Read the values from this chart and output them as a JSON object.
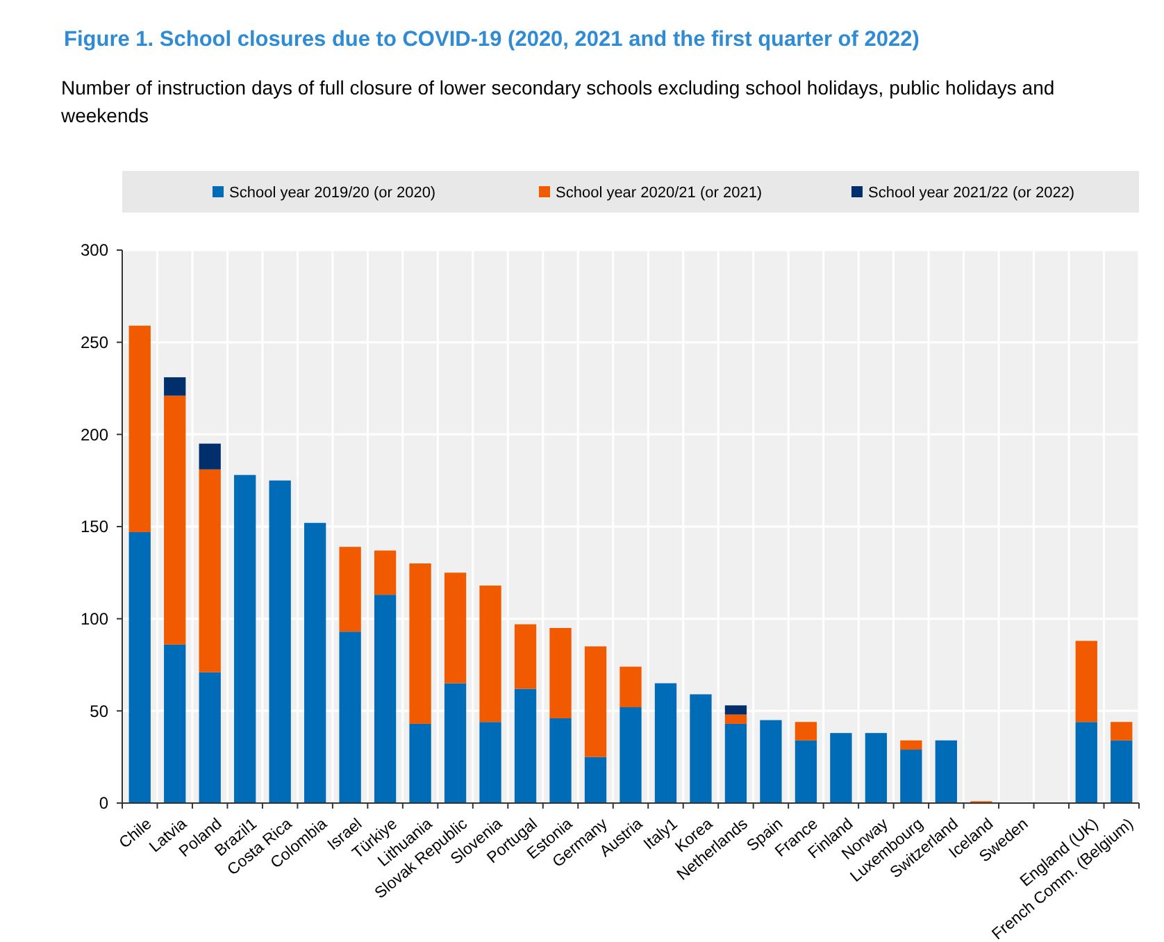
{
  "chart_data": {
    "type": "bar",
    "title": "Figure 1. School closures due to COVID-19 (2020, 2021 and the first quarter of 2022)",
    "subtitle": "Number of instruction days of full closure of lower secondary schools excluding school holidays, public holidays and weekends",
    "stacked": true,
    "legend": "top",
    "grid": true,
    "categories": [
      "Chile",
      "Latvia",
      "Poland",
      "Brazil1",
      "Costa Rica",
      "Colombia",
      "Israel",
      "Türkiye",
      "Lithuania",
      "Slovak Republic",
      "Slovenia",
      "Portugal",
      "Estonia",
      "Germany",
      "Austria",
      "Italy1",
      "Korea",
      "Netherlands",
      "Spain",
      "France",
      "Finland",
      "Norway",
      "Luxembourg",
      "Switzerland",
      "Iceland",
      "Sweden",
      null,
      "England (UK)",
      "French Comm. (Belgium)"
    ],
    "series": [
      {
        "name": "School year 2019/20 (or 2020)",
        "color": "#006bb6",
        "values": [
          147,
          86,
          71,
          178,
          175,
          152,
          93,
          113,
          43,
          65,
          44,
          62,
          46,
          25,
          52,
          65,
          59,
          43,
          45,
          34,
          38,
          38,
          29,
          34,
          null,
          null,
          null,
          44,
          34
        ]
      },
      {
        "name": "School year 2020/21 (or 2021)",
        "color": "#f25a00",
        "values": [
          112,
          135,
          110,
          null,
          null,
          null,
          46,
          24,
          87,
          60,
          74,
          35,
          49,
          60,
          22,
          null,
          null,
          5,
          null,
          10,
          null,
          null,
          5,
          null,
          1,
          null,
          null,
          44,
          10
        ]
      },
      {
        "name": "School year 2021/22 (or 2022)",
        "color": "#002f6c",
        "values": [
          null,
          10,
          14,
          null,
          null,
          null,
          null,
          null,
          null,
          null,
          null,
          null,
          null,
          null,
          null,
          null,
          null,
          5,
          null,
          null,
          null,
          null,
          null,
          null,
          null,
          null,
          null,
          null,
          null
        ]
      }
    ],
    "ylim": [
      0,
      300
    ],
    "yticks": [
      0,
      50,
      100,
      150,
      200,
      250,
      300
    ]
  }
}
